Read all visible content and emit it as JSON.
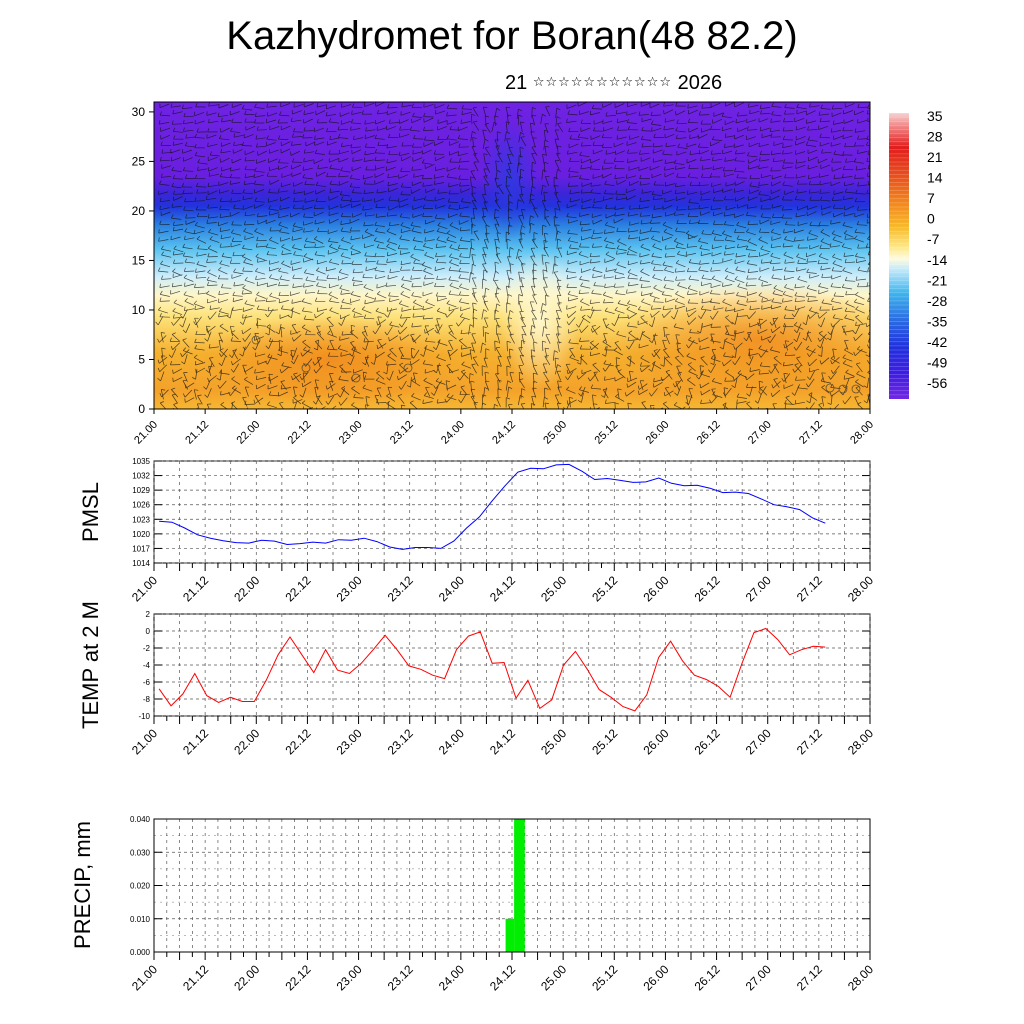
{
  "title": "Kazhydromet for Boran(48 82.2)",
  "subtitle": {
    "day": "21",
    "masked_month": "☆☆☆☆☆☆☆☆☆☆☆",
    "year": "2026"
  },
  "chart_data": [
    {
      "type": "heatmap",
      "name": "vertical-cross-section",
      "x_ticks": [
        "21.00",
        "21.12",
        "22.00",
        "22.12",
        "23.00",
        "23.12",
        "24.00",
        "24.12",
        "25.00",
        "25.12",
        "26.00",
        "26.12",
        "27.00",
        "27.12",
        "28.00"
      ],
      "y_ticks": [
        "0",
        "5",
        "10",
        "15",
        "20",
        "25",
        "30"
      ],
      "ylim": [
        0,
        31
      ],
      "colorbar_labels": [
        "35",
        "28",
        "21",
        "14",
        "7",
        "0",
        "-7",
        "-14",
        "-21",
        "-28",
        "-35",
        "-42",
        "-49",
        "-56"
      ],
      "colors": {
        "warm": "#f5a623",
        "cold": "#6a1fe0",
        "band": "#2233dd",
        "light": "#fff6c0"
      }
    },
    {
      "type": "line",
      "name": "pmsl",
      "ylabel": "PMSL",
      "ylim": [
        1014,
        1035
      ],
      "y_ticks": [
        "1035",
        "1032",
        "1029",
        "1026",
        "1023",
        "1020",
        "1017",
        "1014"
      ],
      "x_ticks": [
        "21.00",
        "21.12",
        "22.00",
        "22.12",
        "23.00",
        "23.12",
        "24.00",
        "24.12",
        "25.00",
        "25.12",
        "26.00",
        "26.12",
        "27.00",
        "27.12",
        "28.00"
      ],
      "color": "#0000ff",
      "values": [
        1022.6,
        1022.4,
        1021.2,
        1019.8,
        1019.1,
        1018.6,
        1018.2,
        1018.1,
        1018.7,
        1018.5,
        1017.8,
        1018.0,
        1018.3,
        1018.1,
        1018.8,
        1018.7,
        1019.1,
        1018.4,
        1017.3,
        1016.8,
        1017.2,
        1017.2,
        1017.0,
        1018.5,
        1021.2,
        1023.5,
        1026.8,
        1029.9,
        1032.7,
        1033.5,
        1033.4,
        1034.2,
        1034.3,
        1032.9,
        1031.2,
        1031.4,
        1031.0,
        1030.6,
        1030.7,
        1031.5,
        1030.4,
        1029.9,
        1030.0,
        1029.4,
        1028.5,
        1028.6,
        1028.3,
        1027.2,
        1026.0,
        1025.6,
        1025.0,
        1023.3,
        1022.2
      ]
    },
    {
      "type": "line",
      "name": "temp-2m",
      "ylabel": "TEMP at 2 M",
      "ylim": [
        -10,
        2
      ],
      "y_ticks": [
        "2",
        "0",
        "-2",
        "-4",
        "-6",
        "-8",
        "-10"
      ],
      "x_ticks": [
        "21.00",
        "21.12",
        "22.00",
        "22.12",
        "23.00",
        "23.12",
        "24.00",
        "24.12",
        "25.00",
        "25.12",
        "26.00",
        "26.12",
        "27.00",
        "27.12",
        "28.00"
      ],
      "color": "#ff0000",
      "values": [
        -6.8,
        -8.8,
        -7.4,
        -5.0,
        -7.6,
        -8.4,
        -7.8,
        -8.3,
        -8.3,
        -5.8,
        -2.8,
        -0.7,
        -2.8,
        -4.9,
        -2.2,
        -4.6,
        -5.0,
        -3.8,
        -2.2,
        -0.5,
        -2.2,
        -4.1,
        -4.5,
        -5.2,
        -5.6,
        -2.2,
        -0.6,
        -0.1,
        -3.8,
        -3.7,
        -7.9,
        -5.8,
        -9.1,
        -8.1,
        -4.0,
        -2.4,
        -4.5,
        -6.9,
        -7.8,
        -8.9,
        -9.4,
        -7.5,
        -3.1,
        -1.2,
        -3.5,
        -5.2,
        -5.7,
        -6.5,
        -7.8,
        -3.8,
        -0.2,
        0.3,
        -1.0,
        -2.8,
        -2.2,
        -1.8,
        -1.9
      ]
    },
    {
      "type": "bar",
      "name": "precip",
      "ylabel": "PRECIP, mm",
      "ylim": [
        0,
        0.04
      ],
      "y_ticks": [
        "0.040",
        "0.030",
        "0.020",
        "0.010",
        "0.000"
      ],
      "x_ticks": [
        "21.00",
        "21.12",
        "22.00",
        "22.12",
        "23.00",
        "23.12",
        "24.00",
        "24.12",
        "25.00",
        "25.12",
        "26.00",
        "26.12",
        "27.00",
        "27.12",
        "28.00"
      ],
      "color": "#00ee00",
      "bars": [
        {
          "t_start": 82.5,
          "t_end": 84.5,
          "value": 0.01
        },
        {
          "t_start": 84.5,
          "t_end": 87.0,
          "value": 0.04
        }
      ]
    }
  ]
}
